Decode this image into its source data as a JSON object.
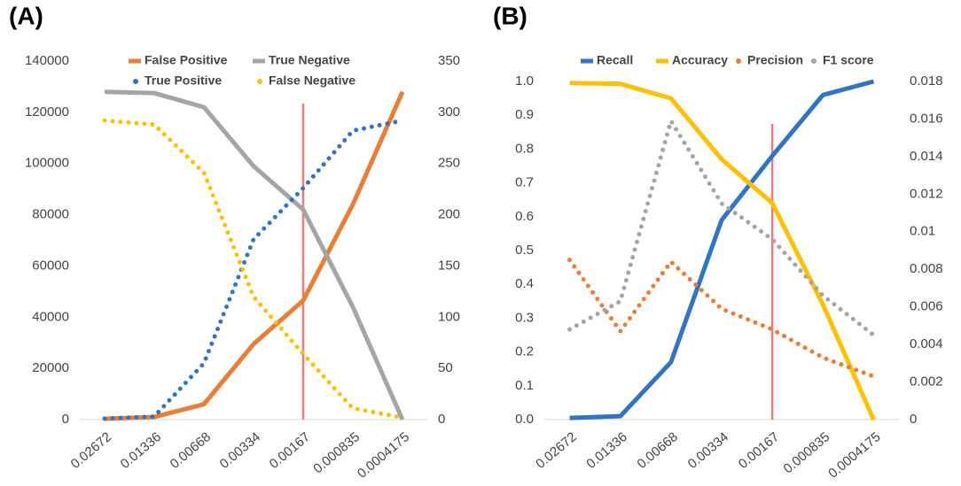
{
  "chart_data": [
    {
      "type": "line",
      "label": "(A)",
      "categories": [
        "0.02672",
        "0.01336",
        "0.00668",
        "0.00334",
        "0.00167",
        "0.000835",
        "0.0004175"
      ],
      "ylim": [
        0,
        140000
      ],
      "yticks": [
        0,
        20000,
        40000,
        60000,
        80000,
        100000,
        120000,
        140000
      ],
      "y2lim": [
        0,
        350
      ],
      "y2ticks": [
        0,
        50,
        100,
        150,
        200,
        250,
        300,
        350
      ],
      "vline": {
        "category_index": 4,
        "color": "#f07878"
      },
      "series": [
        {
          "name": "False Positive",
          "color": "#ed7d31",
          "style": "solid",
          "values": [
            300,
            1000,
            6000,
            29500,
            46500,
            84000,
            128000
          ]
        },
        {
          "name": "True Negative",
          "color": "#a5a5a5",
          "style": "solid",
          "values": [
            128000,
            127500,
            122000,
            99000,
            82000,
            44000,
            0
          ]
        },
        {
          "name": "True Positive",
          "color": "#2e75c6",
          "style": "dotted",
          "axis": "y2",
          "values": [
            1,
            3,
            55,
            176,
            226,
            282,
            292
          ]
        },
        {
          "name": "False Negative",
          "color": "#ffc000",
          "style": "dotted",
          "axis": "y2",
          "values": [
            292,
            288,
            241,
            120,
            64,
            11,
            2
          ]
        }
      ]
    },
    {
      "type": "line",
      "label": "(B)",
      "categories": [
        "0.02672",
        "0.01336",
        "0.00668",
        "0.00334",
        "0.00167",
        "0.000835",
        "0.0004175"
      ],
      "ylim": [
        0,
        1
      ],
      "yticks": [
        {
          "value": 0,
          "label": "0.0"
        },
        0.1,
        0.2,
        0.3,
        0.4,
        0.5,
        0.6,
        0.7,
        0.8,
        0.9,
        {
          "value": 1,
          "label": "1.0"
        }
      ],
      "y2lim": [
        0,
        0.018
      ],
      "y2ticks": [
        0,
        0.002,
        0.004,
        0.006,
        0.008,
        0.01,
        0.012,
        0.014,
        0.016,
        0.018
      ],
      "vline": {
        "category_index": 4,
        "color": "#f07878"
      },
      "series": [
        {
          "name": "Recall",
          "color": "#2e75c6",
          "style": "solid",
          "values": [
            0.005,
            0.01,
            0.17,
            0.59,
            0.78,
            0.96,
            1.0
          ]
        },
        {
          "name": "Accuracy",
          "color": "#ffc000",
          "style": "solid",
          "values": [
            0.995,
            0.993,
            0.95,
            0.77,
            0.64,
            0.34,
            0.0
          ]
        },
        {
          "name": "Precision",
          "color": "#ed7d31",
          "style": "dotted",
          "axis": "y2",
          "values": [
            0.0085,
            0.0047,
            0.0084,
            0.0059,
            0.0048,
            0.0033,
            0.0023
          ]
        },
        {
          "name": "F1 score",
          "color": "#a5a5a5",
          "style": "dotted",
          "axis": "y2",
          "values": [
            0.0048,
            0.0063,
            0.0159,
            0.0115,
            0.0096,
            0.0066,
            0.0045
          ]
        }
      ]
    }
  ]
}
